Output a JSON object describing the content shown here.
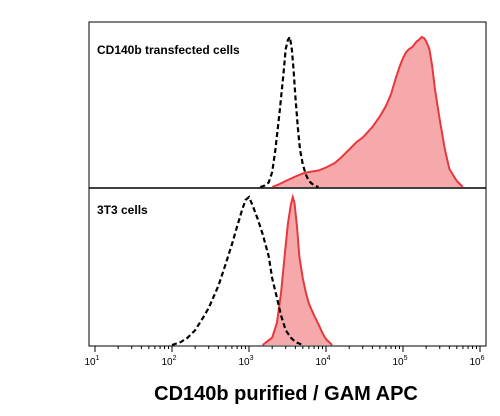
{
  "chart_data": {
    "type": "area",
    "xlabel": "CD140b purified / GAM APC",
    "ylabel": "",
    "x_scale": "log",
    "xlim": [
      10,
      1000000
    ],
    "grid": false,
    "x_ticks": [
      {
        "base": "10",
        "exp": "1",
        "value": 10
      },
      {
        "base": "10",
        "exp": "2",
        "value": 100
      },
      {
        "base": "10",
        "exp": "3",
        "value": 1000
      },
      {
        "base": "10",
        "exp": "4",
        "value": 10000
      },
      {
        "base": "10",
        "exp": "5",
        "value": 100000
      },
      {
        "base": "10",
        "exp": "6",
        "value": 1000000
      }
    ],
    "colors": {
      "stained_line": "#e8383d",
      "stained_fill": "#f6a9ab",
      "control_line": "#000000",
      "axis": "#000000"
    },
    "panels": [
      {
        "label": "CD140b transfected cells",
        "series": [
          {
            "style": "dashed",
            "x": [
              1400,
              1600,
              1800,
              2000,
              2200,
              2500,
              2800,
              3000,
              3200,
              3400,
              3600,
              3800,
              4000,
              4300,
              4600,
              5000,
              5500,
              6000,
              7000,
              8000
            ],
            "y": [
              0,
              1,
              3,
              10,
              25,
              50,
              75,
              92,
              98,
              100,
              92,
              78,
              60,
              40,
              25,
              15,
              8,
              4,
              1,
              0
            ]
          },
          {
            "style": "filled",
            "x": [
              2000,
              2500,
              3000,
              4000,
              5000,
              6000,
              8000,
              10000,
              13000,
              16000,
              20000,
              25000,
              30000,
              40000,
              50000,
              60000,
              70000,
              80000,
              90000,
              100000,
              110000,
              120000,
              130000,
              140000,
              150000,
              160000,
              175000,
              190000,
              200000,
              220000,
              240000,
              260000,
              300000,
              350000,
              400000,
              500000,
              600000
            ],
            "y": [
              0,
              2,
              4,
              7,
              9,
              10,
              11,
              13,
              16,
              20,
              25,
              30,
              33,
              40,
              47,
              54,
              62,
              72,
              80,
              86,
              90,
              92,
              93,
              95,
              97,
              98,
              100,
              99,
              97,
              92,
              80,
              65,
              45,
              25,
              12,
              4,
              0
            ]
          }
        ]
      },
      {
        "label": "3T3 cells",
        "series": [
          {
            "style": "dashed",
            "x": [
              100,
              130,
              160,
              200,
              250,
              300,
              400,
              500,
              600,
              700,
              800,
              900,
              1000,
              1100,
              1300,
              1500,
              1800,
              2000,
              2300,
              2600,
              3000,
              3500,
              4000,
              5000
            ],
            "y": [
              0,
              2,
              5,
              10,
              18,
              25,
              40,
              55,
              68,
              80,
              90,
              98,
              100,
              95,
              85,
              75,
              60,
              45,
              32,
              20,
              10,
              5,
              2,
              0
            ]
          },
          {
            "style": "filled",
            "x": [
              1500,
              2000,
              2300,
              2600,
              2900,
              3200,
              3500,
              3700,
              3900,
              4200,
              4500,
              5000,
              5500,
              6000,
              7000,
              8000,
              9000,
              10000,
              12000
            ],
            "y": [
              0,
              5,
              15,
              35,
              60,
              82,
              95,
              100,
              96,
              80,
              60,
              45,
              35,
              28,
              20,
              14,
              8,
              4,
              0
            ]
          }
        ]
      }
    ]
  }
}
